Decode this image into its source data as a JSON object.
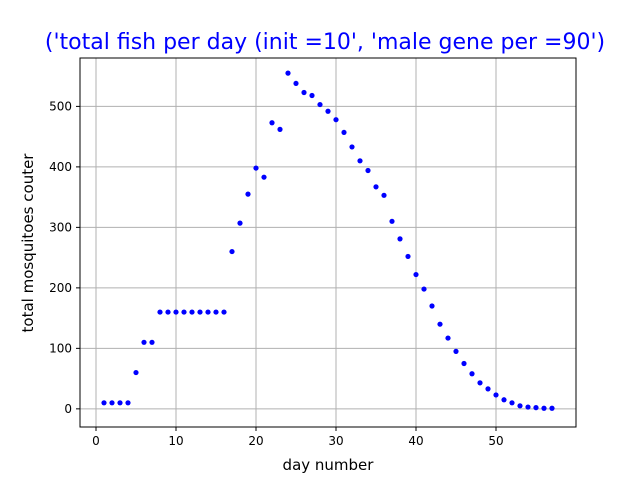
{
  "chart_data": {
    "type": "scatter",
    "title": "('total fish per day (init =10', 'male gene per =90')",
    "xlabel": "day number",
    "ylabel": "total mosquitoes couter",
    "xlim": [
      -2,
      60
    ],
    "ylim": [
      -30,
      580
    ],
    "xticks": [
      0,
      10,
      20,
      30,
      40,
      50
    ],
    "yticks": [
      0,
      100,
      200,
      300,
      400,
      500
    ],
    "grid": true,
    "marker_color": "#0000ff",
    "title_color": "#0000ff",
    "series": [
      {
        "x": [
          1,
          2,
          3,
          4,
          5,
          6,
          7,
          8,
          9,
          10,
          11,
          12,
          13,
          14,
          15,
          16,
          17,
          18,
          19,
          20,
          21,
          22,
          23,
          24,
          25,
          26,
          27,
          28,
          29,
          30,
          31,
          32,
          33,
          34,
          35,
          36,
          37,
          38,
          39,
          40,
          41,
          42,
          43,
          44,
          45,
          46,
          47,
          48,
          49,
          50,
          51,
          52,
          53,
          54,
          55,
          56,
          57
        ],
        "y": [
          10,
          10,
          10,
          10,
          60,
          110,
          110,
          160,
          160,
          160,
          160,
          160,
          160,
          160,
          160,
          160,
          260,
          307,
          355,
          398,
          383,
          473,
          462,
          555,
          538,
          523,
          518,
          503,
          492,
          478,
          457,
          433,
          410,
          394,
          367,
          353,
          310,
          281,
          252,
          222,
          198,
          170,
          140,
          117,
          95,
          75,
          58,
          43,
          33,
          23,
          15,
          10,
          5,
          3,
          2,
          1,
          1
        ]
      }
    ]
  }
}
